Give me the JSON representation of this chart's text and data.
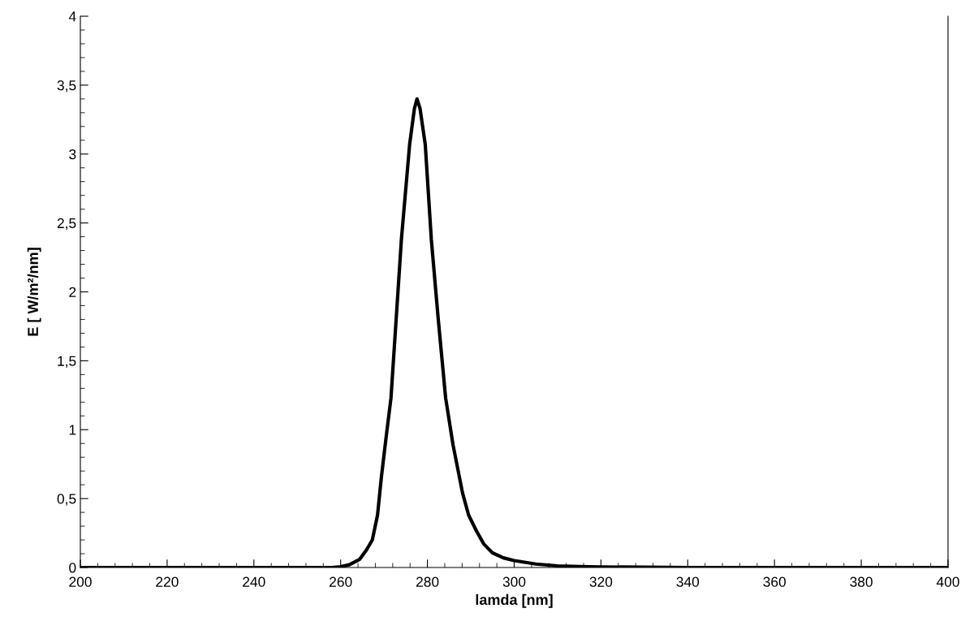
{
  "chart_data": {
    "type": "line",
    "xlabel": "lamda [nm]",
    "ylabel": "E [ W/m²/nm]",
    "xlim": [
      200,
      400
    ],
    "xticks": [
      200,
      220,
      240,
      260,
      280,
      300,
      320,
      340,
      360,
      380,
      400
    ],
    "ylim": [
      0,
      4
    ],
    "yticks": [
      0,
      {
        "value": 0.5,
        "label": "0,5"
      },
      1,
      {
        "value": 1.5,
        "label": "1,5"
      },
      2,
      {
        "value": 2.5,
        "label": "2,5"
      },
      3,
      {
        "value": 3.5,
        "label": "3,5"
      },
      4
    ],
    "grid": false,
    "legend": false,
    "marker": "none",
    "line_style": "solid",
    "series": [
      {
        "color": "#000000",
        "x": [
          200,
          240,
          258,
          260,
          262,
          264.4,
          266,
          267.3,
          268.5,
          269.4,
          270.5,
          271.6,
          273,
          274,
          275.9,
          277,
          277.6,
          278.3,
          279.5,
          280.9,
          282.5,
          284.2,
          285.9,
          288.1,
          289.5,
          291.3,
          293,
          295,
          297.5,
          300,
          305,
          310,
          315,
          320,
          330,
          340,
          360,
          400
        ],
        "values": [
          0,
          0,
          0,
          0.005,
          0.02,
          0.06,
          0.13,
          0.2,
          0.38,
          0.66,
          0.95,
          1.23,
          1.9,
          2.38,
          3.07,
          3.33,
          3.4,
          3.33,
          3.07,
          2.38,
          1.8,
          1.23,
          0.89,
          0.54,
          0.38,
          0.265,
          0.17,
          0.106,
          0.07,
          0.05,
          0.025,
          0.012,
          0.007,
          0.004,
          0.002,
          0,
          0,
          0
        ]
      }
    ]
  }
}
